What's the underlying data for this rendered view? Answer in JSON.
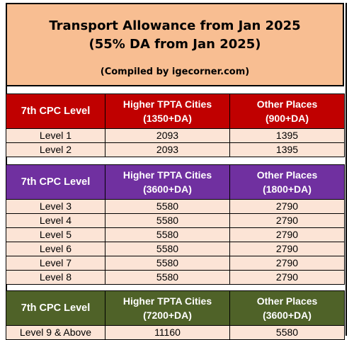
{
  "title_line1": "Transport Allowance from Jan 2025",
  "title_line2": "(55% DA from Jan 2025)",
  "compiled_by": "(Compiled by igecorner.com)",
  "sections": [
    {
      "header": {
        "level_label": "7th CPC Level",
        "col2_line1": "Higher TPTA Cities",
        "col2_line2": "(1350+DA)",
        "col3_line1": "Other Places",
        "col3_line2": "(900+DA)"
      },
      "color": "#c00000",
      "rows": [
        {
          "level": "Level 1",
          "higher": "2093",
          "other": "1395"
        },
        {
          "level": "Level 2",
          "higher": "2093",
          "other": "1395"
        }
      ]
    },
    {
      "header": {
        "level_label": "7th CPC Level",
        "col2_line1": "Higher TPTA Cities",
        "col2_line2": "(3600+DA)",
        "col3_line1": "Other Places",
        "col3_line2": "(1800+DA)"
      },
      "color": "#7030a0",
      "rows": [
        {
          "level": "Level 3",
          "higher": "5580",
          "other": "2790"
        },
        {
          "level": "Level 4",
          "higher": "5580",
          "other": "2790"
        },
        {
          "level": "Level 5",
          "higher": "5580",
          "other": "2790"
        },
        {
          "level": "Level 6",
          "higher": "5580",
          "other": "2790"
        },
        {
          "level": "Level 7",
          "higher": "5580",
          "other": "2790"
        },
        {
          "level": "Level 8",
          "higher": "5580",
          "other": "2790"
        }
      ]
    },
    {
      "header": {
        "level_label": "7th CPC Level",
        "col2_line1": "Higher TPTA Cities",
        "col2_line2": "(7200+DA)",
        "col3_line1": "Other Places",
        "col3_line2": "(3600+DA)"
      },
      "color": "#4f6228",
      "rows": [
        {
          "level": "Level 9 & Above",
          "higher": "11160",
          "other": "5580"
        }
      ]
    }
  ]
}
